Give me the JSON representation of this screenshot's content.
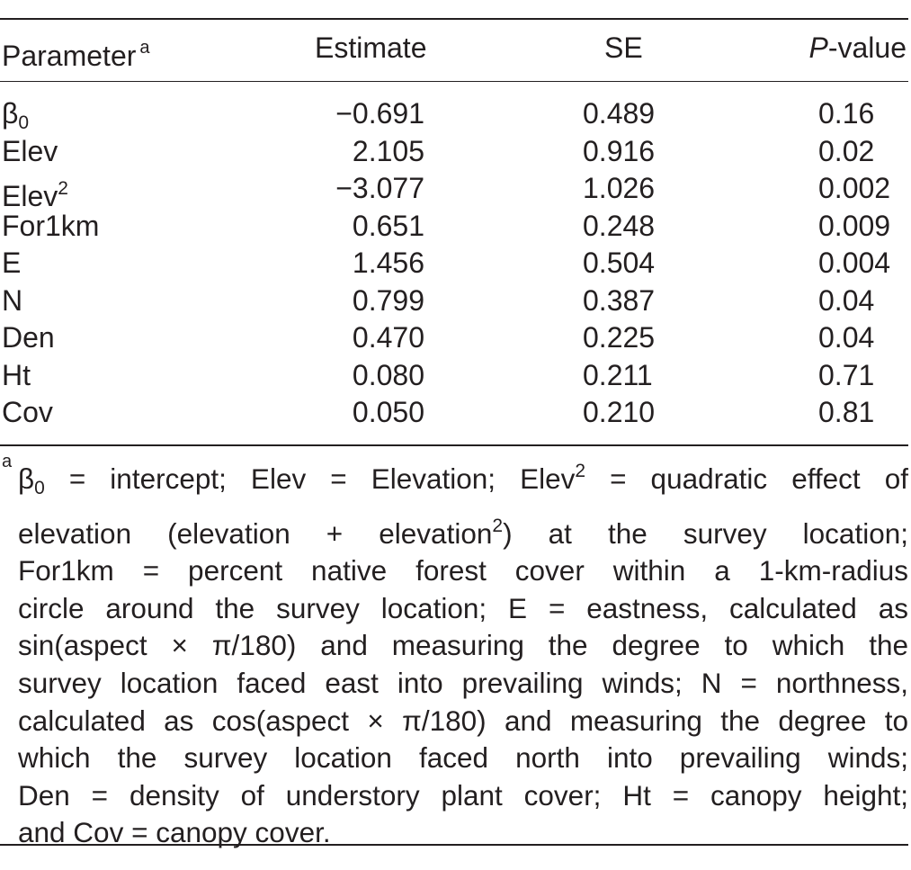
{
  "table": {
    "header": {
      "parameter": "Parameter",
      "parameter_note": "a",
      "estimate": "Estimate",
      "se": "SE",
      "p_italic": "P",
      "p_rest": "-value"
    },
    "rows": [
      {
        "param": "β",
        "param_sub": "0",
        "param_sup": "",
        "estimate": "−0.691",
        "se": "0.489",
        "p": "0.16"
      },
      {
        "param": "Elev",
        "param_sub": "",
        "param_sup": "",
        "estimate": "2.105",
        "se": "0.916",
        "p": "0.02"
      },
      {
        "param": "Elev",
        "param_sub": "",
        "param_sup": "2",
        "estimate": "−3.077",
        "se": "1.026",
        "p": "0.002"
      },
      {
        "param": "For1km",
        "param_sub": "",
        "param_sup": "",
        "estimate": "0.651",
        "se": "0.248",
        "p": "0.009"
      },
      {
        "param": "E",
        "param_sub": "",
        "param_sup": "",
        "estimate": "1.456",
        "se": "0.504",
        "p": "0.004"
      },
      {
        "param": "N",
        "param_sub": "",
        "param_sup": "",
        "estimate": "0.799",
        "se": "0.387",
        "p": "0.04"
      },
      {
        "param": "Den",
        "param_sub": "",
        "param_sup": "",
        "estimate": "0.470",
        "se": "0.225",
        "p": "0.04"
      },
      {
        "param": "Ht",
        "param_sub": "",
        "param_sup": "",
        "estimate": "0.080",
        "se": "0.211",
        "p": "0.71"
      },
      {
        "param": "Cov",
        "param_sub": "",
        "param_sup": "",
        "estimate": "0.050",
        "se": "0.210",
        "p": "0.81"
      }
    ],
    "footnote": {
      "mark": "a",
      "lines": [
        [
          "β",
          "0",
          " = intercept; Elev = Elevation; Elev",
          "2",
          " = quadratic effect of"
        ],
        [
          "elevation (elevation + elevation",
          "2",
          ") at the survey location;"
        ],
        [
          "For1km = percent native forest cover within a 1-km-radius"
        ],
        [
          "circle around the survey location; E = eastness, calculated as"
        ],
        [
          "sin(aspect × π/180) and measuring the degree to which the"
        ],
        [
          "survey location faced east into prevailing winds; N = northness,"
        ],
        [
          "calculated as cos(aspect × π/180) and measuring the degree to"
        ],
        [
          "which the survey location faced north into prevailing winds;"
        ],
        [
          "Den = density of understory plant cover; Ht = canopy height;"
        ],
        [
          "and Cov = canopy cover."
        ]
      ]
    }
  }
}
